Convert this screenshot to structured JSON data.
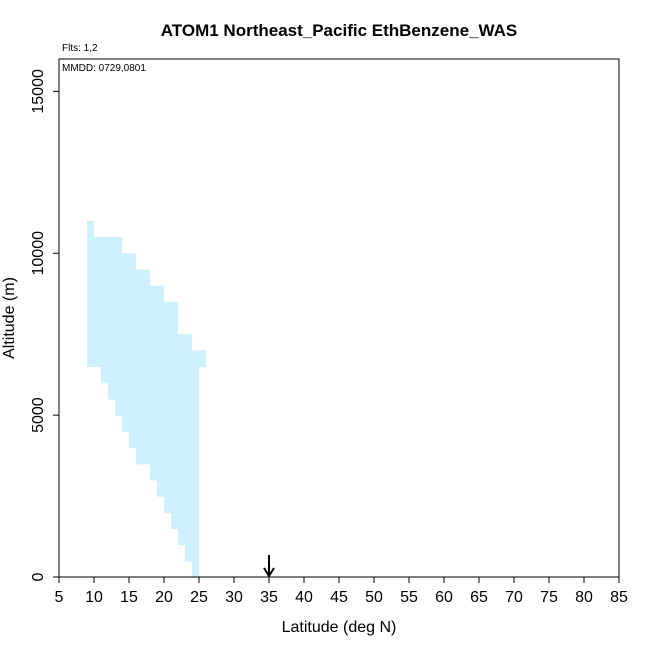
{
  "chart_data": {
    "type": "area",
    "title": "ATOM1 Northeast_Pacific EthBenzene_WAS",
    "flights_label": "Flts: 1,2",
    "dates_label": "MMDD: 0729,0801",
    "xlabel": "Latitude (deg N)",
    "ylabel": "Altitude (m)",
    "xlim": [
      5,
      85
    ],
    "ylim": [
      0,
      16000
    ],
    "xticks": [
      "5",
      "10",
      "15",
      "20",
      "25",
      "30",
      "35",
      "40",
      "45",
      "50",
      "55",
      "60",
      "65",
      "70",
      "75",
      "80",
      "85"
    ],
    "yticks": [
      "0",
      "5000",
      "10000",
      "15000"
    ],
    "grid": false,
    "fill_color": "#cdf0fc",
    "marker_latitude": 35,
    "altitude_bins": [
      {
        "alt_low": 0,
        "alt_high": 500,
        "lat_min": 24.0,
        "lat_max": 25.0
      },
      {
        "alt_low": 500,
        "alt_high": 1000,
        "lat_min": 23.0,
        "lat_max": 25.0
      },
      {
        "alt_low": 1000,
        "alt_high": 1500,
        "lat_min": 22.0,
        "lat_max": 25.0
      },
      {
        "alt_low": 1500,
        "alt_high": 2000,
        "lat_min": 21.0,
        "lat_max": 25.0
      },
      {
        "alt_low": 2000,
        "alt_high": 2500,
        "lat_min": 20.0,
        "lat_max": 25.0
      },
      {
        "alt_low": 2500,
        "alt_high": 3000,
        "lat_min": 19.0,
        "lat_max": 25.0
      },
      {
        "alt_low": 3000,
        "alt_high": 3500,
        "lat_min": 18.0,
        "lat_max": 25.0
      },
      {
        "alt_low": 3500,
        "alt_high": 4000,
        "lat_min": 16.0,
        "lat_max": 25.0
      },
      {
        "alt_low": 4000,
        "alt_high": 4500,
        "lat_min": 15.0,
        "lat_max": 25.0
      },
      {
        "alt_low": 4500,
        "alt_high": 5000,
        "lat_min": 14.0,
        "lat_max": 25.0
      },
      {
        "alt_low": 5000,
        "alt_high": 5500,
        "lat_min": 13.0,
        "lat_max": 25.0
      },
      {
        "alt_low": 5500,
        "alt_high": 6000,
        "lat_min": 12.0,
        "lat_max": 25.0
      },
      {
        "alt_low": 6000,
        "alt_high": 6500,
        "lat_min": 11.0,
        "lat_max": 25.0
      },
      {
        "alt_low": 6500,
        "alt_high": 7000,
        "lat_min": 9.0,
        "lat_max": 26.0
      },
      {
        "alt_low": 7000,
        "alt_high": 7500,
        "lat_min": 9.0,
        "lat_max": 24.0
      },
      {
        "alt_low": 7500,
        "alt_high": 8000,
        "lat_min": 9.0,
        "lat_max": 22.0
      },
      {
        "alt_low": 8000,
        "alt_high": 8500,
        "lat_min": 9.0,
        "lat_max": 22.0
      },
      {
        "alt_low": 8500,
        "alt_high": 9000,
        "lat_min": 9.0,
        "lat_max": 20.0
      },
      {
        "alt_low": 9000,
        "alt_high": 9500,
        "lat_min": 9.0,
        "lat_max": 18.0
      },
      {
        "alt_low": 9500,
        "alt_high": 10000,
        "lat_min": 9.0,
        "lat_max": 16.0
      },
      {
        "alt_low": 10000,
        "alt_high": 10500,
        "lat_min": 9.0,
        "lat_max": 14.0
      },
      {
        "alt_low": 10500,
        "alt_high": 11000,
        "lat_min": 9.0,
        "lat_max": 10.0
      }
    ]
  }
}
